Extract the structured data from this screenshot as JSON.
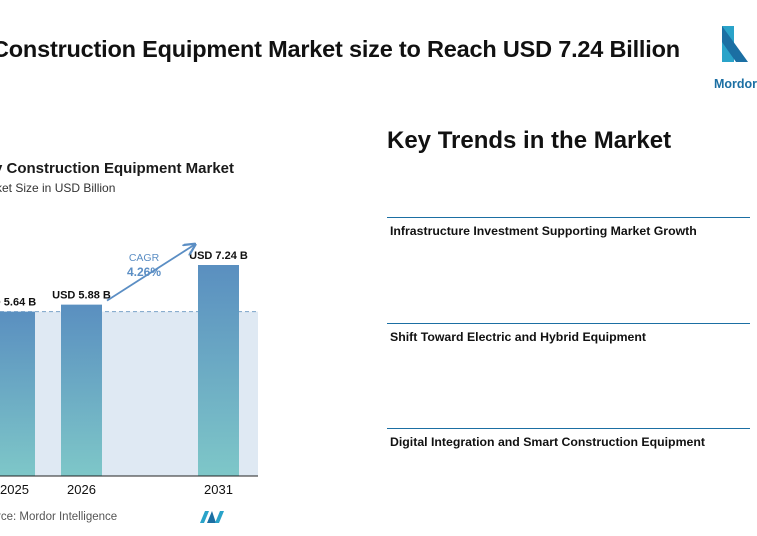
{
  "headline": "Construction Equipment Market size to Reach USD 7.24 Billion",
  "logo": {
    "text": "Mordor",
    "color": "#1b6fa3"
  },
  "chart_title": "y Construction Equipment Market",
  "chart_subtitle": "ket Size in USD Billion",
  "chart_data": {
    "type": "bar",
    "categories": [
      "2025",
      "2026",
      "2031"
    ],
    "values": [
      5.64,
      5.88,
      7.24
    ],
    "value_labels": [
      "D 5.64 B",
      "USD 5.88 B",
      "USD 7.24 B"
    ],
    "ylim": [
      0,
      7.24
    ],
    "reference_value": 5.64,
    "cagr": {
      "label": "CAGR",
      "value": "4.26%"
    },
    "colors": {
      "bar_top": "#5a8fc0",
      "bar_bottom": "#7ec7c8",
      "shade": "#dfe9f3",
      "arrow": "#5b8ec4",
      "text": "#111111",
      "cagr": "#5b8ec4"
    }
  },
  "source": "rce: Mordor Intelligence",
  "trends": {
    "heading": "Key Trends in the Market",
    "items": [
      {
        "label": "Infrastructure Investment Supporting Market Growth"
      },
      {
        "label": "Shift Toward Electric and Hybrid Equipment"
      },
      {
        "label": "Digital Integration and Smart Construction Equipment"
      }
    ]
  }
}
